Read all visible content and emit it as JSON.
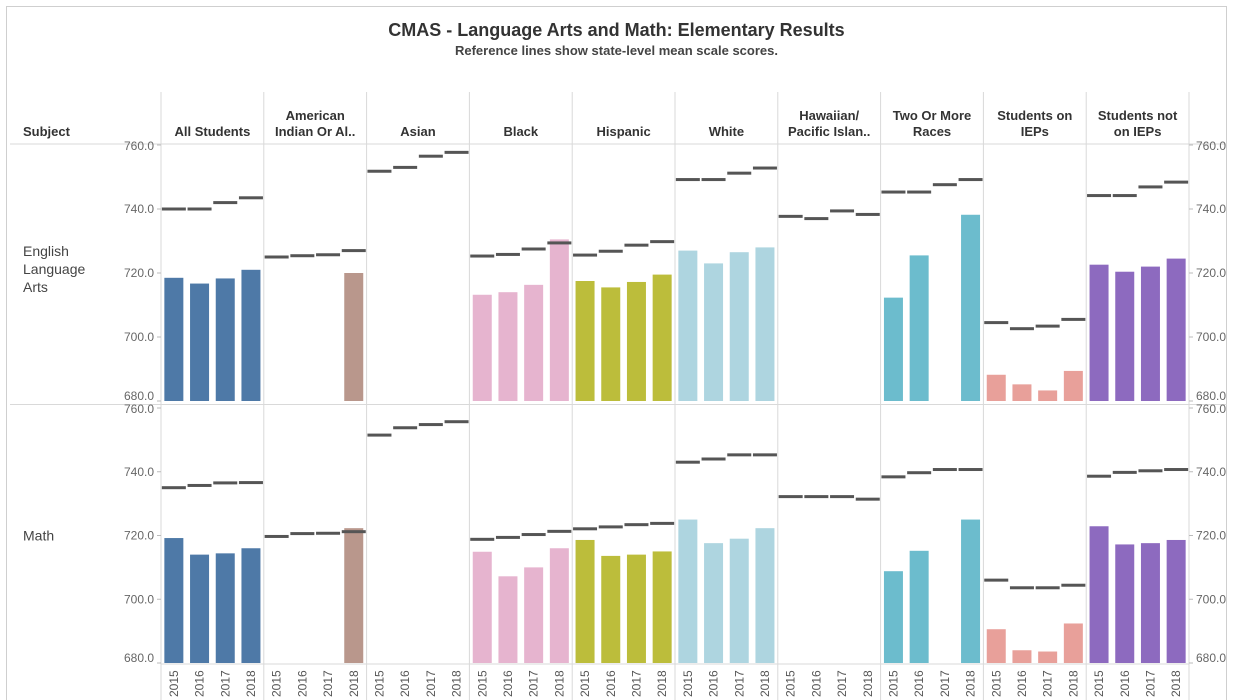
{
  "chart_data": {
    "type": "bar",
    "title": "CMAS - Language Arts and Math: Elementary Results",
    "subtitle": "Reference lines show state-level mean scale scores.",
    "row_header": "Subject",
    "ylim": [
      680,
      760
    ],
    "yticks": [
      "760.0",
      "740.0",
      "720.0",
      "700.0",
      "680.0"
    ],
    "years": [
      "2015",
      "2016",
      "2017",
      "2018"
    ],
    "groups": [
      {
        "label": [
          "All Students"
        ],
        "color": "#4e79a7"
      },
      {
        "label": [
          "American",
          "Indian Or Al.."
        ],
        "color": "#b9978c"
      },
      {
        "label": [
          "Asian"
        ],
        "color": "#5da6a7"
      },
      {
        "label": [
          "Black"
        ],
        "color": "#e6b4cf"
      },
      {
        "label": [
          "Hispanic"
        ],
        "color": "#bcbd3b"
      },
      {
        "label": [
          "White"
        ],
        "color": "#aed5e0"
      },
      {
        "label": [
          "Hawaiian/",
          "Pacific Islan.."
        ],
        "color": "#a0cbe8"
      },
      {
        "label": [
          "Two Or More",
          "Races"
        ],
        "color": "#6cbccd"
      },
      {
        "label": [
          "Students on",
          "IEPs"
        ],
        "color": "#e8a09a"
      },
      {
        "label": [
          "Students not",
          "on IEPs"
        ],
        "color": "#8d6abf"
      }
    ],
    "subjects": [
      {
        "label": [
          "English",
          "Language",
          "Arts"
        ],
        "values": [
          [
            718.5,
            716.7,
            718.3,
            721.0
          ],
          [
            null,
            null,
            null,
            720.0
          ],
          [
            null,
            null,
            null,
            null
          ],
          [
            713.2,
            714.0,
            716.3,
            730.5
          ],
          [
            717.5,
            715.5,
            717.2,
            719.5
          ],
          [
            727.0,
            723.0,
            726.5,
            728.0
          ],
          [
            null,
            null,
            null,
            null
          ],
          [
            712.3,
            725.5,
            null,
            738.2
          ],
          [
            688.2,
            685.2,
            683.3,
            689.4
          ],
          [
            722.6,
            720.4,
            722.0,
            724.5
          ]
        ],
        "reference": [
          [
            740.0,
            740.0,
            742.0,
            743.5
          ],
          [
            725.0,
            725.4,
            725.7,
            727.0
          ],
          [
            751.8,
            753.0,
            756.5,
            757.7
          ],
          [
            725.3,
            725.8,
            727.5,
            729.4
          ],
          [
            725.6,
            726.8,
            728.7,
            729.8
          ],
          [
            749.2,
            749.2,
            751.2,
            752.8
          ],
          [
            737.7,
            737.0,
            739.4,
            738.3
          ],
          [
            745.3,
            745.3,
            747.6,
            749.2
          ],
          [
            704.5,
            702.6,
            703.4,
            705.5
          ],
          [
            744.2,
            744.2,
            746.9,
            748.4
          ]
        ]
      },
      {
        "label": [
          "Math"
        ],
        "values": [
          [
            719.2,
            714.0,
            714.4,
            716.0
          ],
          [
            null,
            null,
            null,
            722.3
          ],
          [
            null,
            null,
            null,
            null
          ],
          [
            714.9,
            707.2,
            710.0,
            716.0
          ],
          [
            718.6,
            713.6,
            714.0,
            715.0
          ],
          [
            725.0,
            717.6,
            719.0,
            722.3
          ],
          [
            null,
            null,
            null,
            null
          ],
          [
            708.8,
            715.2,
            null,
            725.0
          ],
          [
            690.6,
            684.0,
            683.6,
            692.4
          ],
          [
            722.9,
            717.2,
            717.6,
            718.6
          ]
        ],
        "reference": [
          [
            735.0,
            735.7,
            736.5,
            736.6
          ],
          [
            719.7,
            720.6,
            720.7,
            721.2
          ],
          [
            751.5,
            753.8,
            754.8,
            755.7
          ],
          [
            718.8,
            719.4,
            720.3,
            721.3
          ],
          [
            722.1,
            722.7,
            723.4,
            723.8
          ],
          [
            743.0,
            744.0,
            745.3,
            745.3
          ],
          [
            732.2,
            732.2,
            732.2,
            731.4
          ],
          [
            738.4,
            739.7,
            740.7,
            740.7
          ],
          [
            706.0,
            703.6,
            703.6,
            704.4
          ],
          [
            738.6,
            739.8,
            740.3,
            740.7
          ]
        ]
      }
    ]
  }
}
